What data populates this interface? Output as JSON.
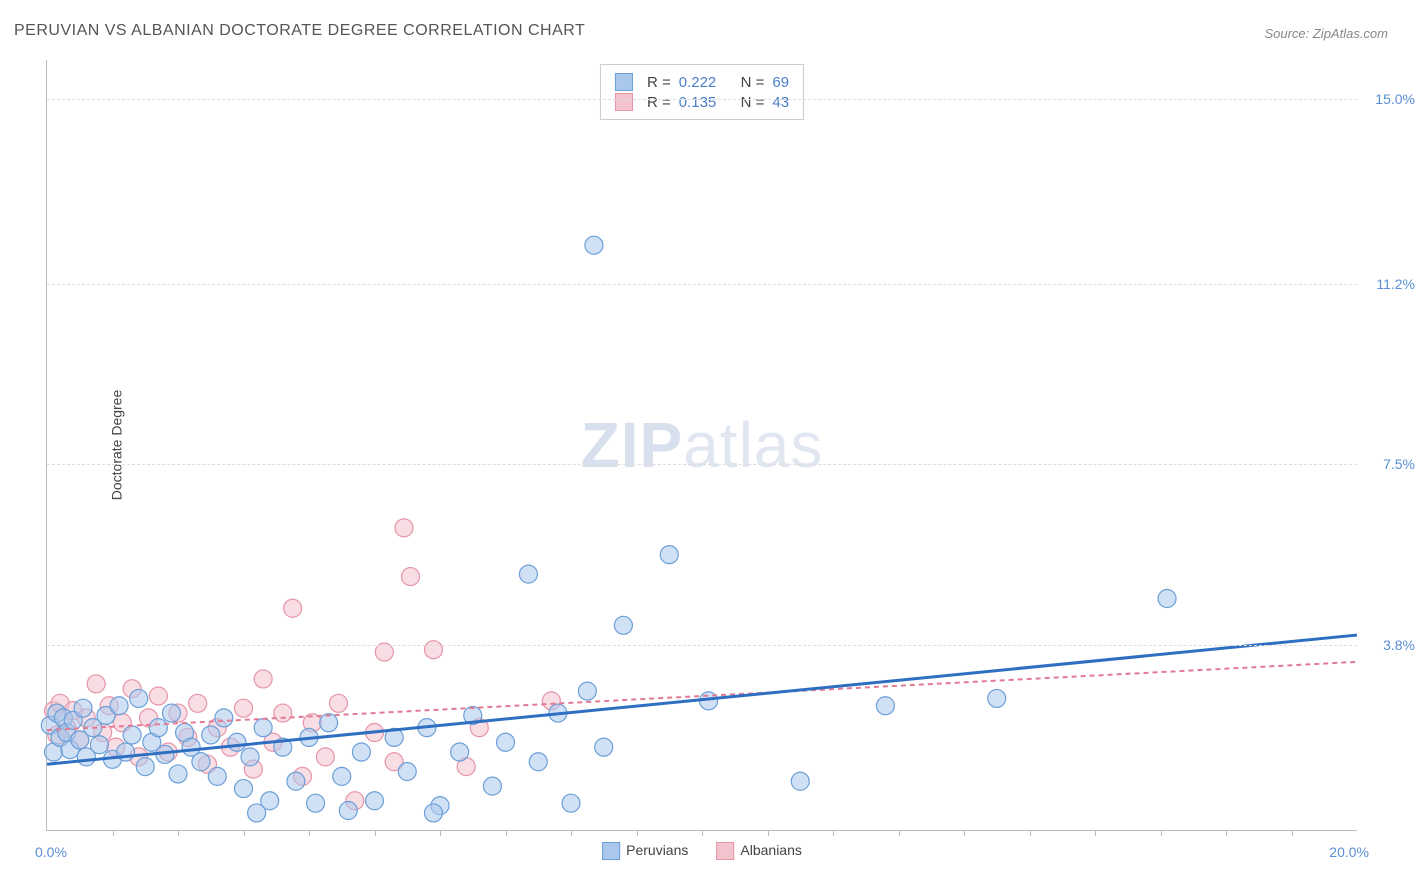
{
  "title": "PERUVIAN VS ALBANIAN DOCTORATE DEGREE CORRELATION CHART",
  "source_prefix": "Source: ",
  "source_name": "ZipAtlas.com",
  "ylabel": "Doctorate Degree",
  "watermark_bold": "ZIP",
  "watermark_light": "atlas",
  "chart": {
    "type": "scatter",
    "xlim": [
      0,
      20
    ],
    "ylim": [
      0,
      15.8
    ],
    "x_start_label": "0.0%",
    "x_end_label": "20.0%",
    "xtick_positions": [
      0,
      1,
      2,
      3,
      4,
      5,
      6,
      7,
      8,
      9,
      10,
      11,
      12,
      13,
      14,
      15,
      16,
      17,
      18,
      19,
      20
    ],
    "ytick_labels": [
      {
        "value": 3.8,
        "label": "3.8%"
      },
      {
        "value": 7.5,
        "label": "7.5%"
      },
      {
        "value": 11.2,
        "label": "11.2%"
      },
      {
        "value": 15.0,
        "label": "15.0%"
      }
    ],
    "grid_color": "#dddddd",
    "background_color": "#ffffff",
    "marker_radius": 9,
    "marker_opacity": 0.55,
    "series": [
      {
        "name": "Peruvians",
        "fill_color": "#a9c8ec",
        "stroke_color": "#6c9fd8",
        "line_color": "#2f6fc1",
        "line_width": 3,
        "R": "0.222",
        "N": "69",
        "regression": {
          "x1": 0,
          "y1": 1.35,
          "x2": 20,
          "y2": 4.0
        },
        "points": [
          [
            0.05,
            2.15
          ],
          [
            0.1,
            1.6
          ],
          [
            0.15,
            2.4
          ],
          [
            0.2,
            1.9
          ],
          [
            0.25,
            2.3
          ],
          [
            0.3,
            2.0
          ],
          [
            0.35,
            1.65
          ],
          [
            0.4,
            2.25
          ],
          [
            0.5,
            1.85
          ],
          [
            0.55,
            2.5
          ],
          [
            0.6,
            1.5
          ],
          [
            0.7,
            2.1
          ],
          [
            0.8,
            1.75
          ],
          [
            0.9,
            2.35
          ],
          [
            1.0,
            1.45
          ],
          [
            1.1,
            2.55
          ],
          [
            1.2,
            1.6
          ],
          [
            1.3,
            1.95
          ],
          [
            1.4,
            2.7
          ],
          [
            1.5,
            1.3
          ],
          [
            1.6,
            1.8
          ],
          [
            1.7,
            2.1
          ],
          [
            1.8,
            1.55
          ],
          [
            1.9,
            2.4
          ],
          [
            2.0,
            1.15
          ],
          [
            2.1,
            2.0
          ],
          [
            2.2,
            1.7
          ],
          [
            2.35,
            1.4
          ],
          [
            2.5,
            1.95
          ],
          [
            2.6,
            1.1
          ],
          [
            2.7,
            2.3
          ],
          [
            2.9,
            1.8
          ],
          [
            3.0,
            0.85
          ],
          [
            3.1,
            1.5
          ],
          [
            3.3,
            2.1
          ],
          [
            3.4,
            0.6
          ],
          [
            3.6,
            1.7
          ],
          [
            3.8,
            1.0
          ],
          [
            4.0,
            1.9
          ],
          [
            4.1,
            0.55
          ],
          [
            4.3,
            2.2
          ],
          [
            4.5,
            1.1
          ],
          [
            4.8,
            1.6
          ],
          [
            5.0,
            0.6
          ],
          [
            5.3,
            1.9
          ],
          [
            5.5,
            1.2
          ],
          [
            5.8,
            2.1
          ],
          [
            6.0,
            0.5
          ],
          [
            6.3,
            1.6
          ],
          [
            6.5,
            2.35
          ],
          [
            6.8,
            0.9
          ],
          [
            7.0,
            1.8
          ],
          [
            7.35,
            5.25
          ],
          [
            7.5,
            1.4
          ],
          [
            7.8,
            2.4
          ],
          [
            8.0,
            0.55
          ],
          [
            8.25,
            2.85
          ],
          [
            8.35,
            12.0
          ],
          [
            8.5,
            1.7
          ],
          [
            8.8,
            4.2
          ],
          [
            9.5,
            5.65
          ],
          [
            10.1,
            2.65
          ],
          [
            11.5,
            1.0
          ],
          [
            12.8,
            2.55
          ],
          [
            14.5,
            2.7
          ],
          [
            17.1,
            4.75
          ],
          [
            3.2,
            0.35
          ],
          [
            4.6,
            0.4
          ],
          [
            5.9,
            0.35
          ]
        ]
      },
      {
        "name": "Albanians",
        "fill_color": "#f3c3ce",
        "stroke_color": "#e794a8",
        "line_color": "#e27a93",
        "line_width": 2,
        "line_dash": "5,4",
        "R": "0.135",
        "N": "43",
        "regression": {
          "x1": 0,
          "y1": 2.05,
          "x2": 20,
          "y2": 3.45
        },
        "points": [
          [
            0.1,
            2.45
          ],
          [
            0.15,
            1.95
          ],
          [
            0.2,
            2.6
          ],
          [
            0.3,
            2.1
          ],
          [
            0.4,
            2.45
          ],
          [
            0.5,
            1.85
          ],
          [
            0.6,
            2.3
          ],
          [
            0.75,
            3.0
          ],
          [
            0.85,
            2.0
          ],
          [
            0.95,
            2.55
          ],
          [
            1.05,
            1.7
          ],
          [
            1.15,
            2.2
          ],
          [
            1.3,
            2.9
          ],
          [
            1.4,
            1.5
          ],
          [
            1.55,
            2.3
          ],
          [
            1.7,
            2.75
          ],
          [
            1.85,
            1.6
          ],
          [
            2.0,
            2.4
          ],
          [
            2.15,
            1.9
          ],
          [
            2.3,
            2.6
          ],
          [
            2.45,
            1.35
          ],
          [
            2.6,
            2.1
          ],
          [
            2.8,
            1.7
          ],
          [
            3.0,
            2.5
          ],
          [
            3.15,
            1.25
          ],
          [
            3.3,
            3.1
          ],
          [
            3.45,
            1.8
          ],
          [
            3.6,
            2.4
          ],
          [
            3.75,
            4.55
          ],
          [
            3.9,
            1.1
          ],
          [
            4.05,
            2.2
          ],
          [
            4.25,
            1.5
          ],
          [
            4.45,
            2.6
          ],
          [
            4.7,
            0.6
          ],
          [
            5.0,
            2.0
          ],
          [
            5.15,
            3.65
          ],
          [
            5.3,
            1.4
          ],
          [
            5.55,
            5.2
          ],
          [
            5.45,
            6.2
          ],
          [
            5.9,
            3.7
          ],
          [
            6.4,
            1.3
          ],
          [
            6.6,
            2.1
          ],
          [
            7.7,
            2.65
          ]
        ]
      }
    ]
  },
  "legend_labels": {
    "R": "R =",
    "N": "N ="
  }
}
